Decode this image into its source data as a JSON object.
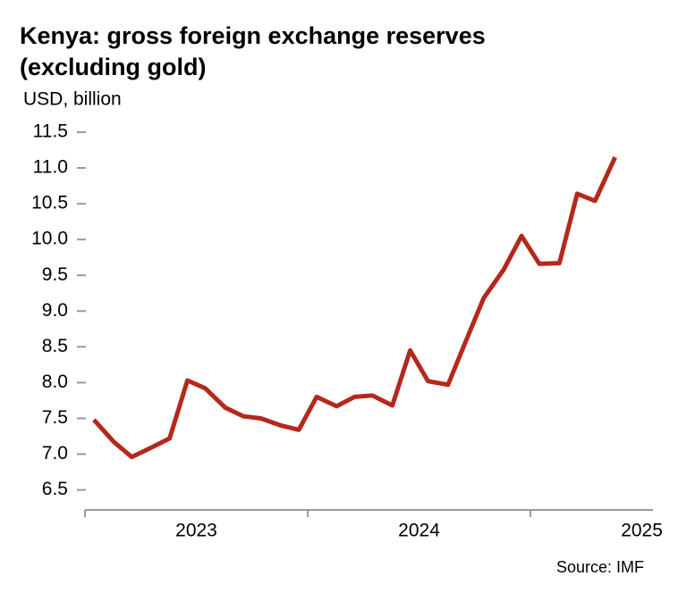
{
  "chart_data": {
    "type": "line",
    "title": [
      "Kenya: gross foreign exchange reserves",
      "(excluding gold)"
    ],
    "subtitle": "USD, billion",
    "source": "Source: IMF",
    "x": [
      2023.04,
      2023.13,
      2023.21,
      2023.29,
      2023.38,
      2023.46,
      2023.54,
      2023.63,
      2023.71,
      2023.79,
      2023.88,
      2023.96,
      2024.04,
      2024.13,
      2024.21,
      2024.29,
      2024.38,
      2024.46,
      2024.54,
      2024.63,
      2024.71,
      2024.79,
      2024.88,
      2024.96,
      2025.04,
      2025.13,
      2025.21,
      2025.29,
      2025.38
    ],
    "series": [
      {
        "color": "#b5281c",
        "values": [
          7.48,
          7.17,
          6.96,
          7.08,
          7.22,
          8.03,
          7.92,
          7.65,
          7.53,
          7.5,
          7.4,
          7.34,
          7.8,
          7.67,
          7.8,
          7.82,
          7.68,
          8.45,
          8.02,
          7.97,
          8.58,
          9.18,
          9.58,
          10.05,
          9.66,
          9.67,
          10.64,
          10.54,
          11.15
        ]
      }
    ],
    "xlim": [
      2023,
      2025.55
    ],
    "xticks": [
      2023,
      2024,
      2025
    ],
    "ylim": [
      6.22,
      11.6
    ],
    "yticks": [
      6.5,
      {
        "value": 7,
        "label": "7.0"
      },
      7.5,
      {
        "value": 8,
        "label": "8.0"
      },
      8.5,
      {
        "value": 9,
        "label": "9.0"
      },
      9.5,
      {
        "value": 10,
        "label": "10.0"
      },
      10.5,
      {
        "value": 11,
        "label": "11.0"
      },
      11.5
    ]
  }
}
